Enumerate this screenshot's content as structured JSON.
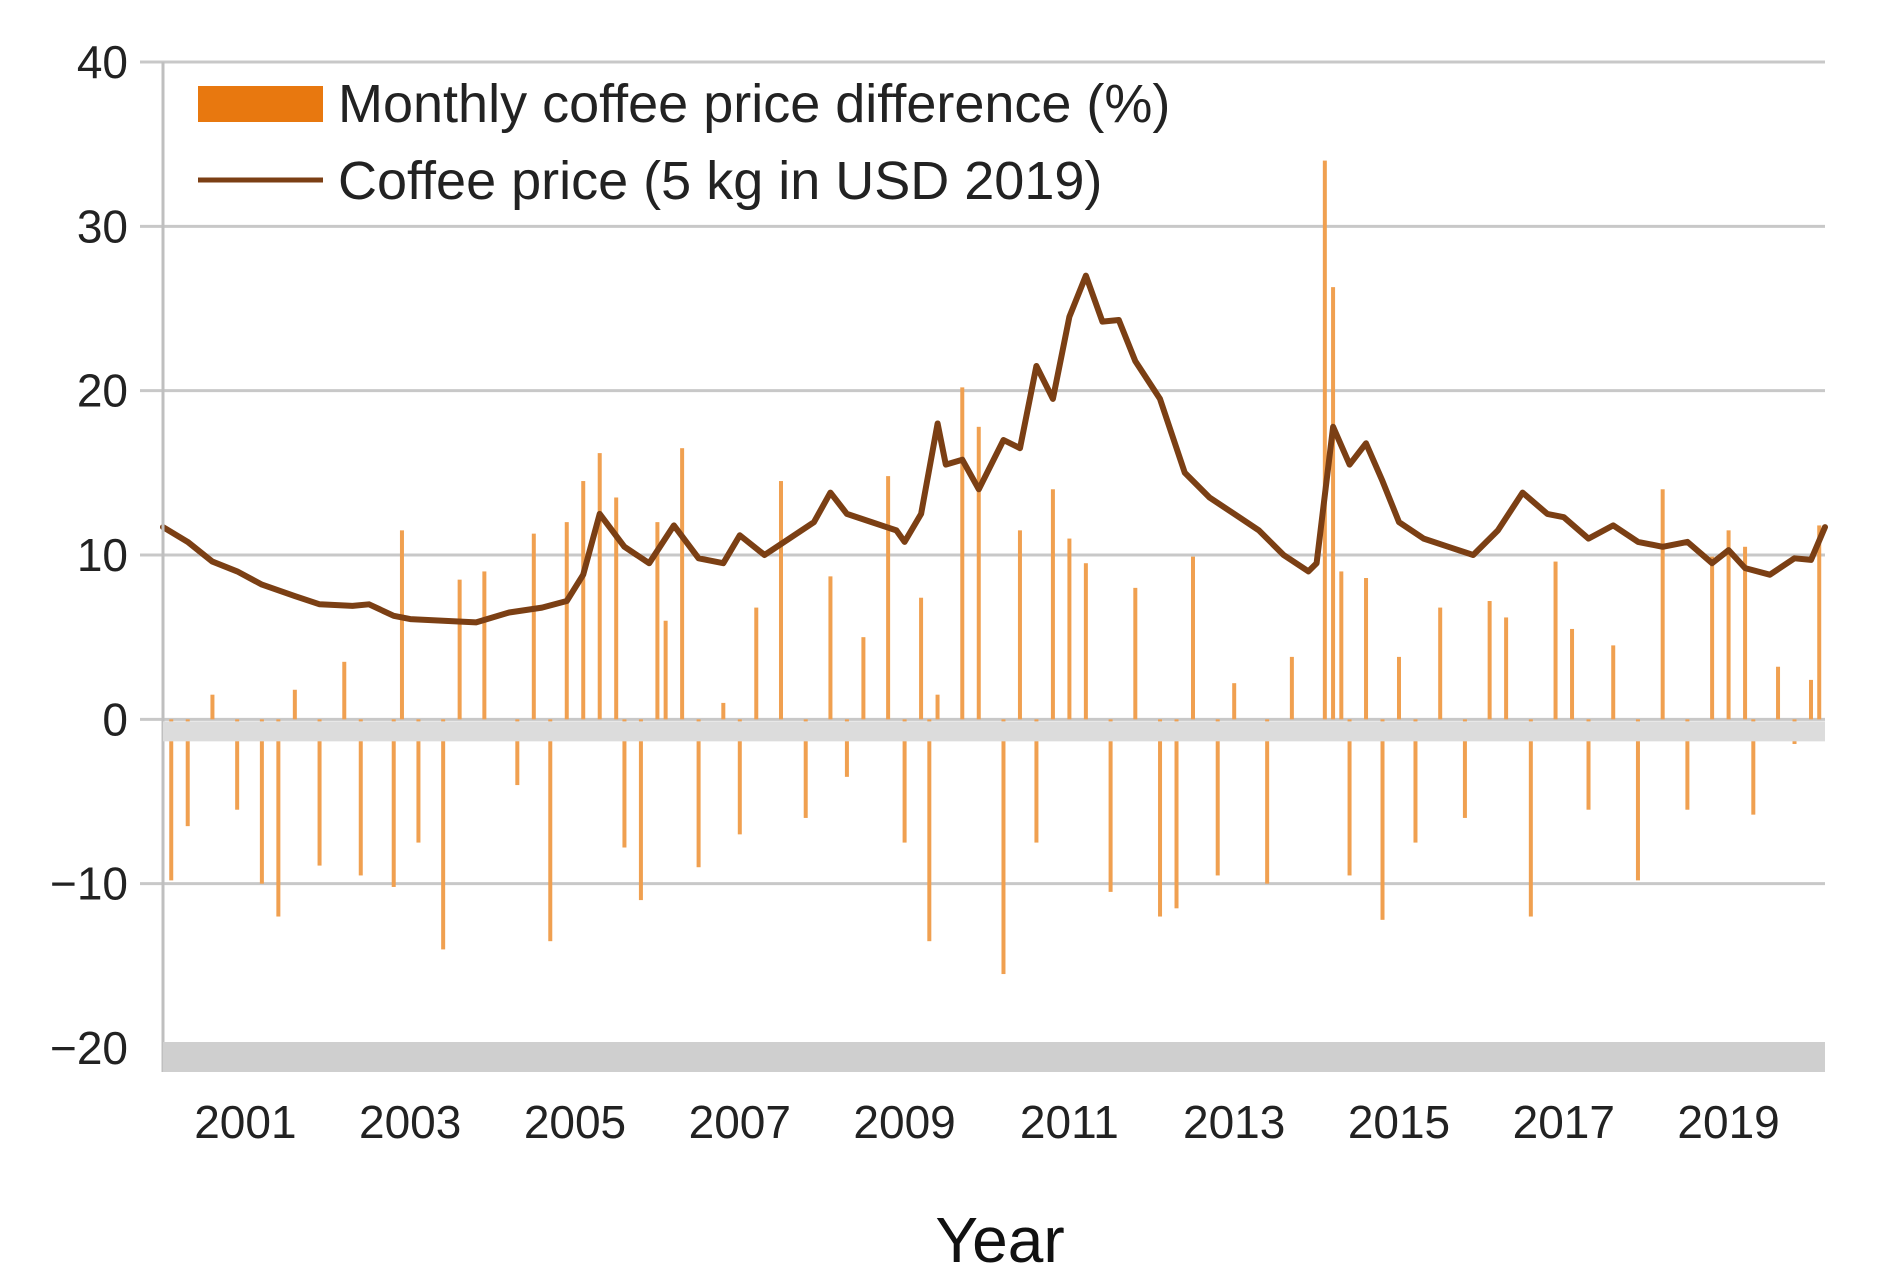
{
  "chart_data": {
    "type": "bar",
    "title": "",
    "xlabel": "Year",
    "ylabel": "",
    "ylim": [
      -20,
      40
    ],
    "xlim": [
      2000.0,
      2020.17
    ],
    "y_ticks": [
      "40",
      "30",
      "20",
      "10",
      "0",
      "−10",
      "−20"
    ],
    "y_tick_values": [
      40,
      30,
      20,
      10,
      0,
      -10,
      -20
    ],
    "x_ticks": [
      "2001",
      "2003",
      "2005",
      "2007",
      "2009",
      "2011",
      "2013",
      "2015",
      "2017",
      "2019"
    ],
    "x_tick_values": [
      2001,
      2003,
      2005,
      2007,
      2009,
      2011,
      2013,
      2015,
      2017,
      2019
    ],
    "grid": true,
    "legend_position": "top-left",
    "colors": {
      "bar": "#f0a050",
      "legend_bar": "#e8780f",
      "line": "#7b3f14",
      "grid": "#c8c8c8",
      "axis": "#bfbfbf"
    },
    "series": [
      {
        "name": "Monthly coffee price difference (%)",
        "kind": "bar",
        "note": "monthly % change, sampled at notable months; estimated from chart",
        "x": [
          2000.1,
          2000.3,
          2000.6,
          2000.9,
          2001.2,
          2001.4,
          2001.6,
          2001.9,
          2002.2,
          2002.4,
          2002.8,
          2002.9,
          2003.1,
          2003.4,
          2003.6,
          2003.9,
          2004.3,
          2004.5,
          2004.7,
          2004.9,
          2005.1,
          2005.3,
          2005.5,
          2005.6,
          2005.8,
          2006.0,
          2006.1,
          2006.3,
          2006.5,
          2006.8,
          2007.0,
          2007.2,
          2007.5,
          2007.8,
          2008.1,
          2008.3,
          2008.5,
          2008.8,
          2009.0,
          2009.2,
          2009.3,
          2009.4,
          2009.7,
          2009.9,
          2010.2,
          2010.4,
          2010.6,
          2010.8,
          2011.0,
          2011.2,
          2011.5,
          2011.8,
          2012.1,
          2012.3,
          2012.5,
          2012.8,
          2013.0,
          2013.4,
          2013.7,
          2014.1,
          2014.2,
          2014.3,
          2014.4,
          2014.6,
          2014.8,
          2015.0,
          2015.2,
          2015.5,
          2015.8,
          2016.1,
          2016.3,
          2016.6,
          2016.9,
          2017.1,
          2017.3,
          2017.6,
          2017.9,
          2018.2,
          2018.5,
          2018.8,
          2019.0,
          2019.2,
          2019.3,
          2019.6,
          2019.8,
          2020.0,
          2020.1
        ],
        "values": [
          -9.8,
          -6.5,
          1.5,
          -5.5,
          -10.0,
          -12.0,
          1.8,
          -8.9,
          3.5,
          -9.5,
          -10.2,
          11.5,
          -7.5,
          -14.0,
          8.5,
          9.0,
          -4.0,
          11.3,
          -13.5,
          12.0,
          14.5,
          16.2,
          13.5,
          -7.8,
          -11.0,
          12.0,
          6.0,
          16.5,
          -9.0,
          1.0,
          -7.0,
          6.8,
          14.5,
          -6.0,
          8.7,
          -3.5,
          5.0,
          14.8,
          -7.5,
          7.4,
          -13.5,
          1.5,
          20.2,
          17.8,
          -15.5,
          11.5,
          -7.5,
          14.0,
          11.0,
          9.5,
          -10.5,
          8.0,
          -12.0,
          -11.5,
          9.9,
          -9.5,
          2.2,
          -10.0,
          3.8,
          34.0,
          26.3,
          9.0,
          -9.5,
          8.6,
          -12.2,
          3.8,
          -7.5,
          6.8,
          -6.0,
          7.2,
          6.2,
          -12.0,
          9.6,
          5.5,
          -5.5,
          4.5,
          -9.8,
          14.0,
          -5.5,
          9.9,
          11.5,
          10.5,
          -5.8,
          3.2,
          -1.5,
          2.4,
          11.8
        ]
      },
      {
        "name": "Coffee price (5 kg in USD 2019)",
        "kind": "line",
        "note": "estimated from chart",
        "x": [
          2000.0,
          2000.3,
          2000.6,
          2000.9,
          2001.2,
          2001.6,
          2001.9,
          2002.3,
          2002.5,
          2002.8,
          2003.0,
          2003.4,
          2003.8,
          2004.2,
          2004.6,
          2004.9,
          2005.1,
          2005.3,
          2005.6,
          2005.9,
          2006.2,
          2006.5,
          2006.8,
          2007.0,
          2007.3,
          2007.6,
          2007.9,
          2008.1,
          2008.3,
          2008.6,
          2008.9,
          2009.0,
          2009.2,
          2009.4,
          2009.5,
          2009.7,
          2009.9,
          2010.2,
          2010.4,
          2010.6,
          2010.8,
          2011.0,
          2011.2,
          2011.4,
          2011.6,
          2011.8,
          2012.1,
          2012.4,
          2012.7,
          2013.0,
          2013.3,
          2013.6,
          2013.9,
          2014.0,
          2014.2,
          2014.4,
          2014.6,
          2014.8,
          2015.0,
          2015.3,
          2015.6,
          2015.9,
          2016.2,
          2016.5,
          2016.8,
          2017.0,
          2017.3,
          2017.6,
          2017.9,
          2018.2,
          2018.5,
          2018.8,
          2019.0,
          2019.2,
          2019.5,
          2019.8,
          2020.0,
          2020.17
        ],
        "values": [
          11.7,
          10.8,
          9.6,
          9.0,
          8.2,
          7.5,
          7.0,
          6.9,
          7.0,
          6.3,
          6.1,
          6.0,
          5.9,
          6.5,
          6.8,
          7.2,
          8.8,
          12.5,
          10.5,
          9.5,
          11.8,
          9.8,
          9.5,
          11.2,
          10.0,
          11.0,
          12.0,
          13.8,
          12.5,
          12.0,
          11.5,
          10.8,
          12.5,
          18.0,
          15.5,
          15.8,
          14.0,
          17.0,
          16.5,
          21.5,
          19.5,
          24.5,
          27.0,
          24.2,
          24.3,
          21.8,
          19.5,
          15.0,
          13.5,
          12.5,
          11.5,
          10.0,
          9.0,
          9.5,
          17.8,
          15.5,
          16.8,
          14.5,
          12.0,
          11.0,
          10.5,
          10.0,
          11.5,
          13.8,
          12.5,
          12.3,
          11.0,
          11.8,
          10.8,
          10.5,
          10.8,
          9.5,
          10.3,
          9.2,
          8.8,
          9.8,
          9.7,
          11.7
        ]
      }
    ]
  }
}
